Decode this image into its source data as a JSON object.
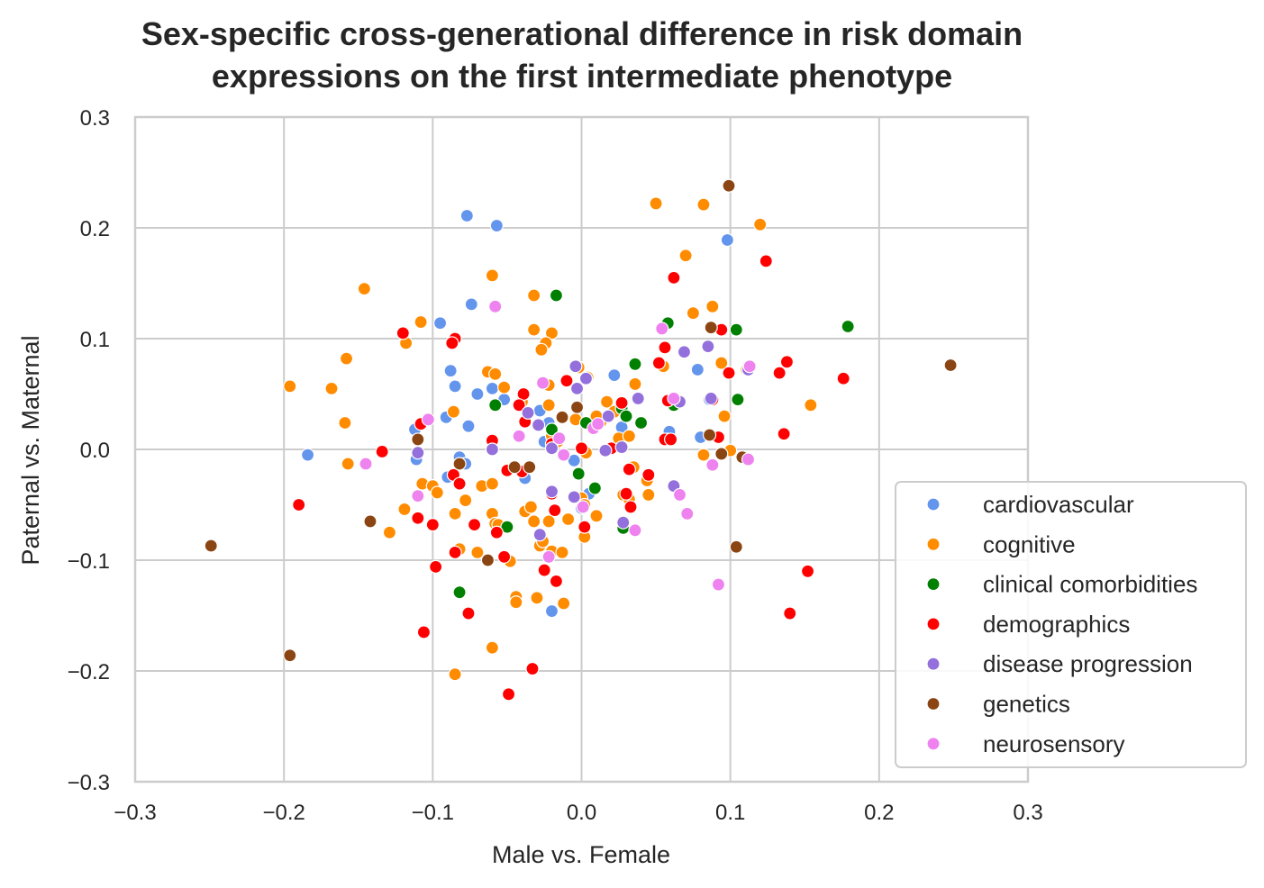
{
  "chart_data": {
    "type": "scatter",
    "title": [
      "Sex-specific cross-generational difference in risk domain",
      "expressions on the first intermediate phenotype"
    ],
    "xlabel": "Male vs. Female",
    "ylabel": "Paternal vs. Maternal",
    "xlim": [
      -0.3,
      0.3
    ],
    "ylim": [
      -0.3,
      0.3
    ],
    "xticks": [
      "−0.3",
      "−0.2",
      "−0.1",
      "0.0",
      "0.1",
      "0.2",
      "0.3"
    ],
    "yticks": [
      "−0.3",
      "−0.2",
      "−0.1",
      "0.0",
      "0.1",
      "0.2",
      "0.3"
    ],
    "grid": true,
    "legend_position": "lower-right",
    "series": [
      {
        "name": "cardiovascular",
        "color": "#6495ED",
        "points": [
          [
            -0.077,
            0.211
          ],
          [
            -0.057,
            0.202
          ],
          [
            0.098,
            0.189
          ],
          [
            -0.074,
            0.131
          ],
          [
            -0.095,
            0.114
          ],
          [
            -0.088,
            0.071
          ],
          [
            -0.085,
            0.057
          ],
          [
            -0.07,
            0.05
          ],
          [
            -0.06,
            0.055
          ],
          [
            -0.052,
            0.045
          ],
          [
            -0.076,
            0.021
          ],
          [
            -0.091,
            0.029
          ],
          [
            -0.112,
            0.018
          ],
          [
            -0.184,
            -0.005
          ],
          [
            -0.082,
            -0.007
          ],
          [
            -0.078,
            -0.013
          ],
          [
            -0.111,
            -0.009
          ],
          [
            -0.09,
            -0.025
          ],
          [
            -0.028,
            0.035
          ],
          [
            -0.025,
            0.007
          ],
          [
            -0.022,
            0.024
          ],
          [
            -0.038,
            -0.026
          ],
          [
            -0.02,
            -0.146
          ],
          [
            0.0,
            -0.053
          ],
          [
            0.022,
            0.067
          ],
          [
            0.027,
            0.02
          ],
          [
            0.059,
            0.016
          ],
          [
            0.058,
            0.009
          ],
          [
            0.08,
            0.011
          ],
          [
            0.078,
            0.072
          ],
          [
            0.086,
            0.045
          ],
          [
            0.005,
            -0.04
          ],
          [
            0.03,
            -0.04
          ],
          [
            -0.005,
            -0.01
          ]
        ]
      },
      {
        "name": "cognitive",
        "color": "#FF8C00",
        "points": [
          [
            0.05,
            0.222
          ],
          [
            0.082,
            0.221
          ],
          [
            0.12,
            0.203
          ],
          [
            -0.06,
            0.157
          ],
          [
            0.07,
            0.175
          ],
          [
            -0.146,
            0.145
          ],
          [
            -0.032,
            0.139
          ],
          [
            0.088,
            0.129
          ],
          [
            0.075,
            0.123
          ],
          [
            -0.108,
            0.115
          ],
          [
            -0.032,
            0.108
          ],
          [
            -0.02,
            0.105
          ],
          [
            -0.024,
            0.096
          ],
          [
            -0.118,
            0.096
          ],
          [
            -0.158,
            0.082
          ],
          [
            -0.196,
            0.057
          ],
          [
            -0.168,
            0.055
          ],
          [
            -0.159,
            0.024
          ],
          [
            -0.157,
            -0.013
          ],
          [
            -0.129,
            -0.075
          ],
          [
            -0.119,
            -0.054
          ],
          [
            -0.107,
            -0.031
          ],
          [
            -0.1,
            -0.033
          ],
          [
            -0.097,
            -0.039
          ],
          [
            -0.086,
            -0.023
          ],
          [
            -0.086,
            0.034
          ],
          [
            -0.078,
            -0.046
          ],
          [
            -0.085,
            -0.058
          ],
          [
            -0.082,
            -0.09
          ],
          [
            -0.07,
            -0.093
          ],
          [
            -0.067,
            -0.033
          ],
          [
            -0.063,
            0.07
          ],
          [
            -0.058,
            0.068
          ],
          [
            -0.06,
            -0.031
          ],
          [
            -0.06,
            -0.058
          ],
          [
            -0.058,
            -0.067
          ],
          [
            -0.056,
            -0.068
          ],
          [
            -0.052,
            0.056
          ],
          [
            -0.048,
            -0.101
          ],
          [
            -0.044,
            -0.133
          ],
          [
            -0.044,
            -0.138
          ],
          [
            -0.04,
            0.043
          ],
          [
            -0.038,
            -0.056
          ],
          [
            -0.034,
            -0.052
          ],
          [
            -0.032,
            -0.065
          ],
          [
            -0.03,
            -0.134
          ],
          [
            -0.028,
            -0.087
          ],
          [
            -0.026,
            -0.083
          ],
          [
            -0.02,
            -0.092
          ],
          [
            -0.022,
            -0.065
          ],
          [
            -0.022,
            0.04
          ],
          [
            -0.022,
            0.058
          ],
          [
            -0.02,
            0.012
          ],
          [
            -0.016,
            0.007
          ],
          [
            -0.013,
            -0.093
          ],
          [
            -0.012,
            -0.139
          ],
          [
            -0.009,
            -0.063
          ],
          [
            -0.004,
            0.027
          ],
          [
            -0.002,
            0.074
          ],
          [
            0.0,
            -0.044
          ],
          [
            0.002,
            -0.05
          ],
          [
            0.002,
            -0.079
          ],
          [
            0.004,
            0.065
          ],
          [
            0.01,
            -0.06
          ],
          [
            0.013,
            0.025
          ],
          [
            0.017,
            0.043
          ],
          [
            0.022,
            0.034
          ],
          [
            0.025,
            0.01
          ],
          [
            0.028,
            -0.041
          ],
          [
            0.032,
            -0.045
          ],
          [
            0.032,
            0.012
          ],
          [
            0.035,
            -0.016
          ],
          [
            0.036,
            0.059
          ],
          [
            0.044,
            -0.028
          ],
          [
            0.045,
            -0.041
          ],
          [
            0.055,
            0.075
          ],
          [
            0.082,
            -0.005
          ],
          [
            0.096,
            0.03
          ],
          [
            0.094,
            0.078
          ],
          [
            0.1,
            -0.001
          ],
          [
            0.111,
            0.072
          ],
          [
            0.154,
            0.04
          ],
          [
            -0.06,
            -0.179
          ],
          [
            -0.085,
            -0.203
          ],
          [
            -0.027,
            0.09
          ],
          [
            0.003,
            -0.003
          ],
          [
            0.01,
            0.03
          ]
        ]
      },
      {
        "name": "clinical comorbidities",
        "color": "#008000",
        "points": [
          [
            -0.017,
            0.139
          ],
          [
            0.058,
            0.114
          ],
          [
            0.104,
            0.108
          ],
          [
            0.179,
            0.111
          ],
          [
            0.036,
            0.077
          ],
          [
            0.105,
            0.045
          ],
          [
            0.062,
            0.04
          ],
          [
            0.04,
            0.024
          ],
          [
            0.027,
            0.037
          ],
          [
            0.003,
            0.024
          ],
          [
            -0.02,
            0.018
          ],
          [
            -0.058,
            0.04
          ],
          [
            -0.002,
            -0.022
          ],
          [
            0.009,
            -0.035
          ],
          [
            -0.05,
            -0.07
          ],
          [
            -0.082,
            -0.129
          ],
          [
            0.028,
            -0.071
          ],
          [
            0.03,
            0.03
          ]
        ]
      },
      {
        "name": "demographics",
        "color": "#FF0000",
        "points": [
          [
            0.062,
            0.155
          ],
          [
            0.124,
            0.17
          ],
          [
            0.056,
            0.092
          ],
          [
            0.094,
            0.108
          ],
          [
            0.052,
            0.078
          ],
          [
            0.099,
            0.069
          ],
          [
            0.133,
            0.069
          ],
          [
            0.138,
            0.079
          ],
          [
            0.176,
            0.064
          ],
          [
            0.136,
            0.014
          ],
          [
            0.088,
            0.045
          ],
          [
            0.058,
            0.044
          ],
          [
            0.092,
            0.011
          ],
          [
            0.056,
            0.009
          ],
          [
            0.06,
            0.009
          ],
          [
            -0.085,
            0.1
          ],
          [
            -0.087,
            0.096
          ],
          [
            -0.12,
            0.105
          ],
          [
            -0.108,
            0.023
          ],
          [
            -0.134,
            -0.002
          ],
          [
            -0.19,
            -0.05
          ],
          [
            -0.086,
            -0.023
          ],
          [
            -0.082,
            -0.031
          ],
          [
            -0.06,
            0.008
          ],
          [
            -0.05,
            -0.019
          ],
          [
            -0.039,
            0.05
          ],
          [
            -0.042,
            0.04
          ],
          [
            -0.04,
            -0.02
          ],
          [
            -0.038,
            0.025
          ],
          [
            -0.02,
            0.005
          ],
          [
            -0.01,
            0.062
          ],
          [
            0.0,
            0.001
          ],
          [
            0.02,
            0.001
          ],
          [
            0.027,
            0.042
          ],
          [
            0.03,
            -0.04
          ],
          [
            0.032,
            -0.018
          ],
          [
            0.045,
            -0.023
          ],
          [
            0.033,
            -0.052
          ],
          [
            0.002,
            -0.07
          ],
          [
            -0.018,
            -0.055
          ],
          [
            -0.1,
            -0.068
          ],
          [
            -0.11,
            -0.062
          ],
          [
            -0.085,
            -0.093
          ],
          [
            -0.098,
            -0.106
          ],
          [
            -0.057,
            -0.075
          ],
          [
            -0.072,
            -0.068
          ],
          [
            -0.052,
            -0.097
          ],
          [
            -0.017,
            -0.119
          ],
          [
            -0.025,
            -0.109
          ],
          [
            -0.076,
            -0.148
          ],
          [
            -0.106,
            -0.165
          ],
          [
            -0.033,
            -0.198
          ],
          [
            -0.049,
            -0.221
          ],
          [
            0.14,
            -0.148
          ],
          [
            0.152,
            -0.11
          ],
          [
            -0.02,
            -0.04
          ]
        ]
      },
      {
        "name": "disease progression",
        "color": "#9370DB",
        "points": [
          [
            0.085,
            0.093
          ],
          [
            0.069,
            0.088
          ],
          [
            0.112,
            0.072
          ],
          [
            -0.004,
            0.075
          ],
          [
            0.003,
            0.064
          ],
          [
            -0.003,
            0.055
          ],
          [
            0.038,
            0.046
          ],
          [
            0.087,
            0.046
          ],
          [
            0.066,
            0.043
          ],
          [
            -0.036,
            0.033
          ],
          [
            0.018,
            0.03
          ],
          [
            -0.029,
            0.022
          ],
          [
            0.027,
            0.002
          ],
          [
            0.016,
            -0.001
          ],
          [
            -0.02,
            0.001
          ],
          [
            -0.06,
            0.0
          ],
          [
            -0.11,
            -0.003
          ],
          [
            -0.02,
            -0.038
          ],
          [
            -0.005,
            -0.043
          ],
          [
            0.062,
            -0.033
          ],
          [
            0.028,
            -0.066
          ],
          [
            -0.028,
            -0.077
          ]
        ]
      },
      {
        "name": "genetics",
        "color": "#8B4513",
        "points": [
          [
            0.099,
            0.238
          ],
          [
            0.087,
            0.11
          ],
          [
            0.248,
            0.076
          ],
          [
            0.086,
            0.013
          ],
          [
            0.094,
            -0.004
          ],
          [
            0.108,
            -0.007
          ],
          [
            0.104,
            -0.088
          ],
          [
            -0.11,
            0.009
          ],
          [
            -0.082,
            -0.013
          ],
          [
            -0.045,
            -0.016
          ],
          [
            -0.035,
            -0.016
          ],
          [
            -0.013,
            0.029
          ],
          [
            -0.003,
            0.038
          ],
          [
            -0.142,
            -0.065
          ],
          [
            -0.063,
            -0.1
          ],
          [
            -0.249,
            -0.087
          ],
          [
            -0.196,
            -0.186
          ]
        ]
      },
      {
        "name": "neurosensory",
        "color": "#EE82EE",
        "points": [
          [
            -0.058,
            0.129
          ],
          [
            0.054,
            0.109
          ],
          [
            0.113,
            0.075
          ],
          [
            -0.026,
            0.06
          ],
          [
            -0.103,
            0.027
          ],
          [
            -0.042,
            0.012
          ],
          [
            0.008,
            0.019
          ],
          [
            0.011,
            0.023
          ],
          [
            -0.012,
            -0.005
          ],
          [
            -0.145,
            -0.013
          ],
          [
            -0.11,
            -0.042
          ],
          [
            0.088,
            -0.014
          ],
          [
            0.112,
            -0.009
          ],
          [
            0.066,
            -0.041
          ],
          [
            0.071,
            -0.058
          ],
          [
            0.001,
            -0.052
          ],
          [
            0.036,
            -0.073
          ],
          [
            -0.022,
            -0.097
          ],
          [
            0.092,
            -0.122
          ],
          [
            0.062,
            0.046
          ],
          [
            -0.015,
            0.01
          ]
        ]
      }
    ]
  }
}
